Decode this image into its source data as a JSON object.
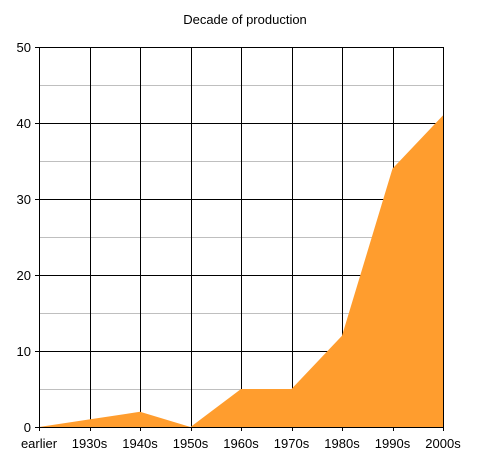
{
  "chart_data": {
    "type": "area",
    "title": "Decade of production",
    "xlabel": "",
    "ylabel": "",
    "categories": [
      "earlier",
      "1930s",
      "1940s",
      "1950s",
      "1960s",
      "1970s",
      "1980s",
      "1990s",
      "2000s"
    ],
    "series": [
      {
        "values": [
          0,
          1,
          2,
          0,
          5,
          5,
          12,
          34,
          41
        ],
        "color": "#ff9d2e"
      }
    ],
    "ylim": [
      0,
      50
    ],
    "yticks": [
      0,
      10,
      20,
      30,
      40,
      50
    ],
    "grid": true,
    "legend": "none"
  }
}
